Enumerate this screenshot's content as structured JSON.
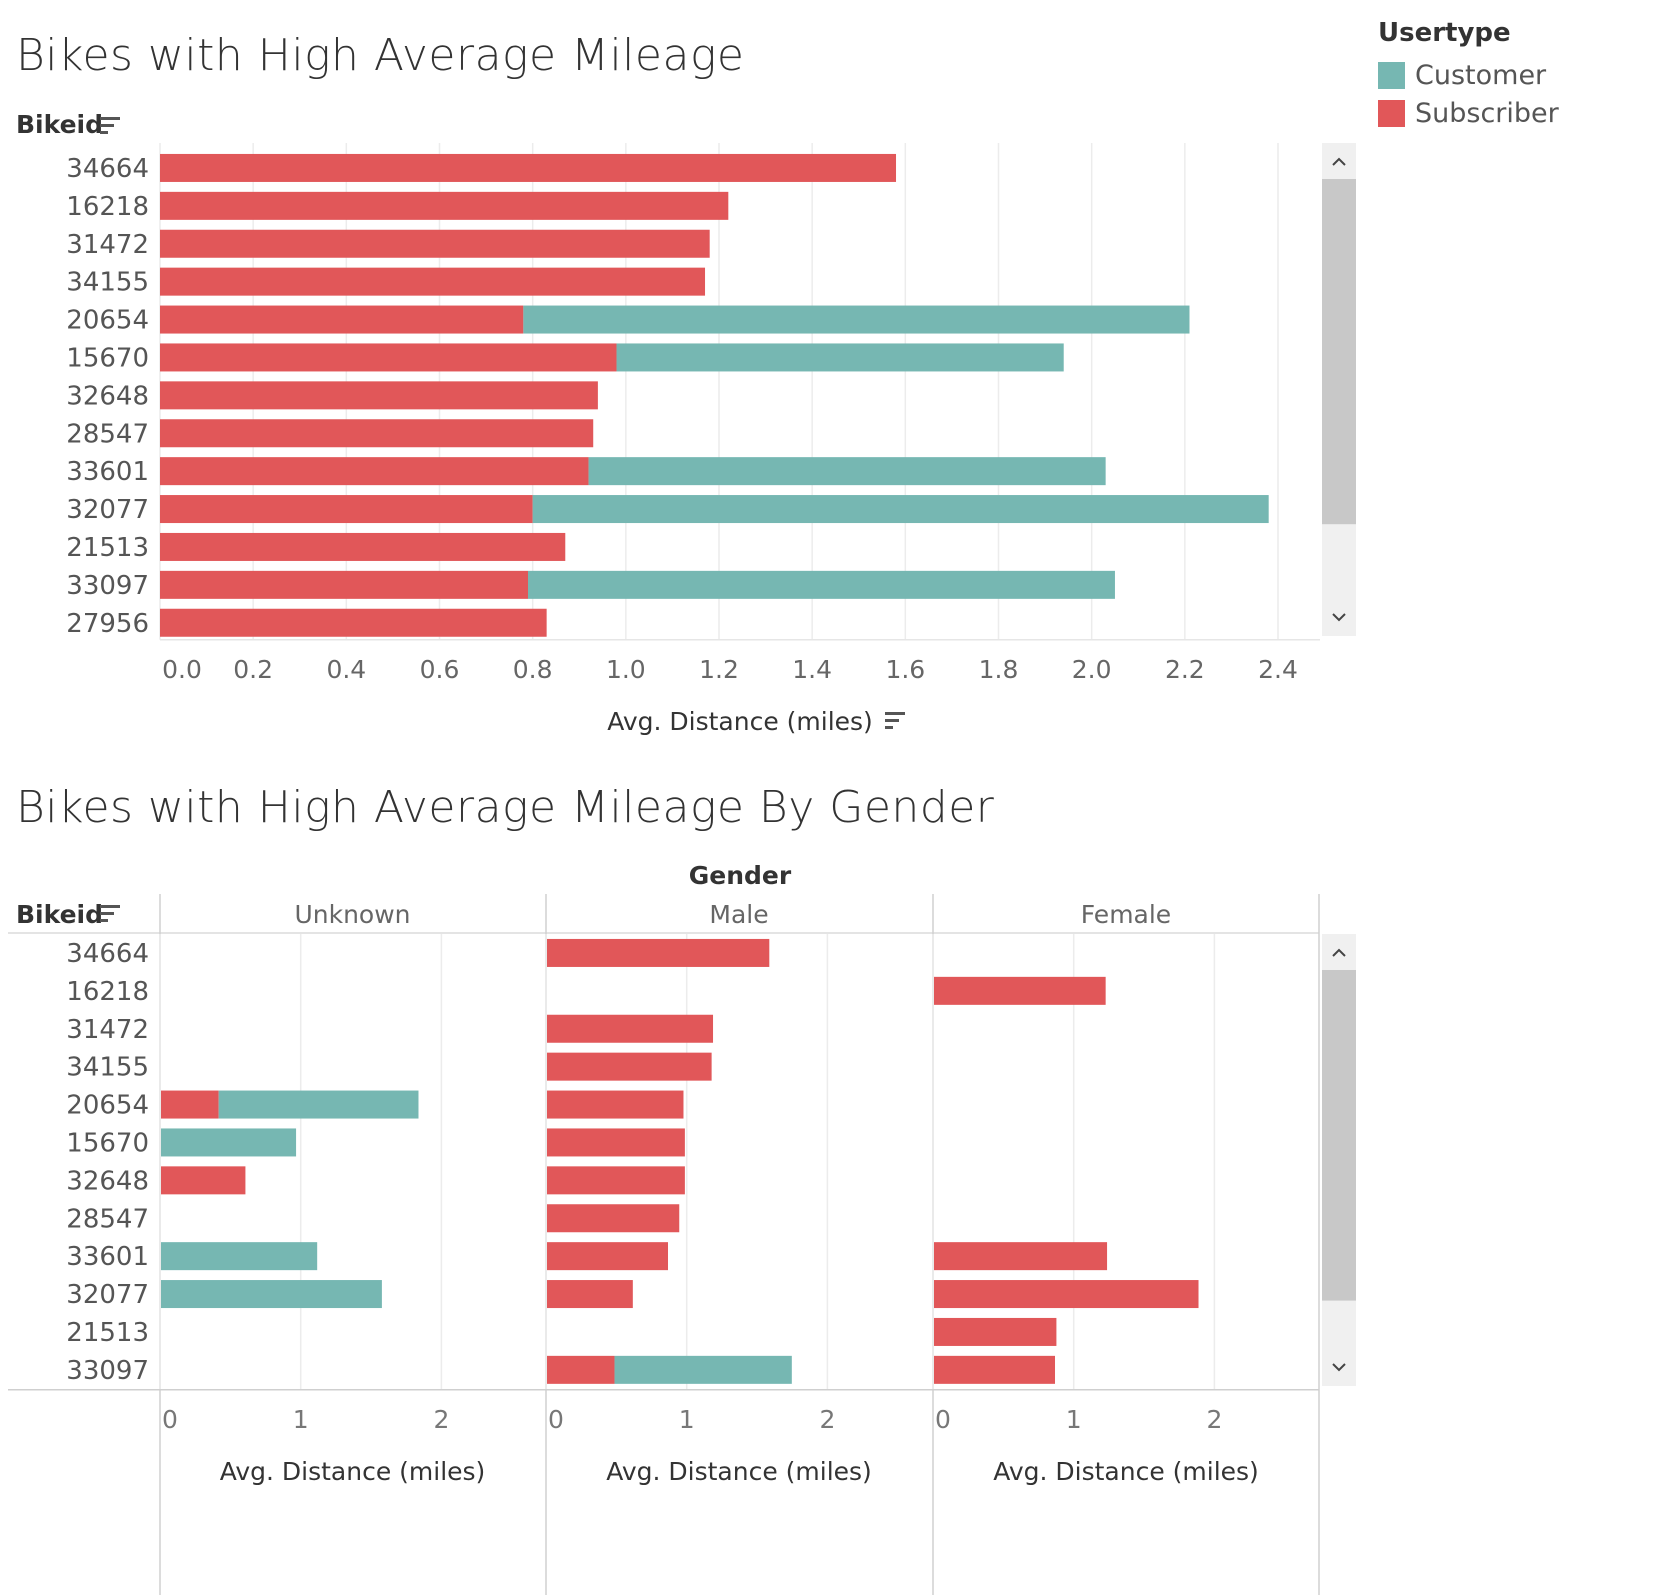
{
  "colors": {
    "customer": "#76b7b2",
    "subscriber": "#e15759",
    "grid": "#ececec",
    "scroll_bg": "#f0f0f0",
    "scroll_thumb": "#c8c8c8"
  },
  "legend": {
    "title": "Usertype",
    "items": [
      {
        "label": "Customer",
        "color": "#76b7b2"
      },
      {
        "label": "Subscriber",
        "color": "#e15759"
      }
    ]
  },
  "chart_data": [
    {
      "type": "bar",
      "orientation": "horizontal",
      "stacked": true,
      "title": "Bikes with High Average Mileage",
      "ylabel": "Bikeid",
      "xlabel": "Avg. Distance (miles)",
      "xlim": [
        0,
        2.4
      ],
      "xticks": [
        "0.0",
        "0.2",
        "0.4",
        "0.6",
        "0.8",
        "1.0",
        "1.2",
        "1.4",
        "1.6",
        "1.8",
        "2.0",
        "2.2",
        "2.4"
      ],
      "categories": [
        "34664",
        "16218",
        "31472",
        "34155",
        "20654",
        "15670",
        "32648",
        "28547",
        "33601",
        "32077",
        "21513",
        "33097",
        "27956"
      ],
      "series": [
        {
          "name": "Subscriber",
          "values": [
            1.58,
            1.22,
            1.18,
            1.17,
            0.78,
            0.98,
            0.94,
            0.93,
            0.92,
            0.8,
            0.87,
            0.79,
            0.83
          ]
        },
        {
          "name": "Customer",
          "values": [
            0,
            0,
            0,
            0,
            1.43,
            0.96,
            0,
            0,
            1.11,
            1.58,
            0,
            1.26,
            0
          ]
        }
      ]
    },
    {
      "type": "bar",
      "orientation": "horizontal",
      "stacked": true,
      "title": "Bikes with High Average Mileage By Gender",
      "ylabel": "Bikeid",
      "column_header": "Gender",
      "xlabel": "Avg. Distance (miles)",
      "xlim": [
        0,
        2.5
      ],
      "xticks": [
        "0",
        "1",
        "2"
      ],
      "categories": [
        "34664",
        "16218",
        "31472",
        "34155",
        "20654",
        "15670",
        "32648",
        "28547",
        "33601",
        "32077",
        "21513",
        "33097"
      ],
      "panels": [
        {
          "name": "Unknown",
          "series": [
            {
              "name": "Subscriber",
              "values": [
                0,
                0,
                0,
                0,
                0.41,
                0,
                0.6,
                0,
                0,
                0,
                0,
                0
              ]
            },
            {
              "name": "Customer",
              "values": [
                0,
                0,
                0,
                0,
                1.42,
                0.96,
                0,
                0,
                1.11,
                1.57,
                0,
                0
              ]
            }
          ]
        },
        {
          "name": "Male",
          "series": [
            {
              "name": "Subscriber",
              "values": [
                1.58,
                0,
                1.18,
                1.17,
                0.97,
                0.98,
                0.98,
                0.94,
                0.86,
                0.61,
                0,
                0.48
              ]
            },
            {
              "name": "Customer",
              "values": [
                0,
                0,
                0,
                0,
                0,
                0,
                0,
                0,
                0,
                0,
                0,
                1.26
              ]
            }
          ]
        },
        {
          "name": "Female",
          "series": [
            {
              "name": "Subscriber",
              "values": [
                0,
                1.22,
                0,
                0,
                0,
                0,
                0,
                0,
                1.23,
                1.88,
                0.87,
                0.86
              ]
            },
            {
              "name": "Customer",
              "values": [
                0,
                0,
                0,
                0,
                0,
                0,
                0,
                0,
                0,
                0,
                0,
                0
              ]
            }
          ]
        }
      ]
    }
  ]
}
